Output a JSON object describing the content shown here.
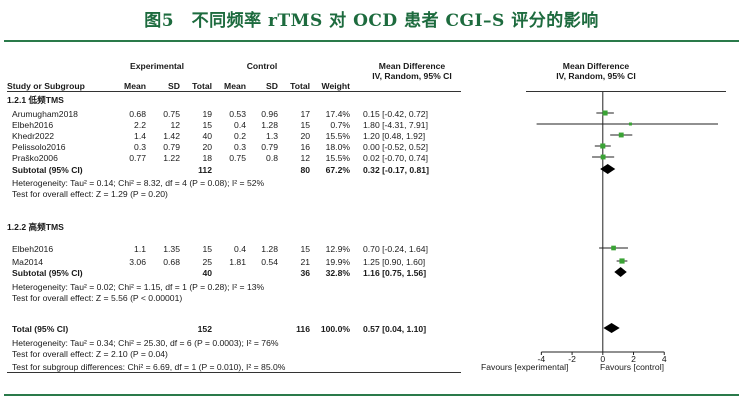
{
  "figure_title": "图5　不同频率 rTMS 对 OCD 患者 CGI–S 评分的影响",
  "headers": {
    "experimental": "Experimental",
    "control": "Control",
    "md_left": "Mean Difference",
    "md_left_sub": "IV, Random, 95% CI",
    "md_right": "Mean Difference",
    "md_right_sub": "IV, Random, 95% CI",
    "study": "Study or Subgroup",
    "mean_e": "Mean",
    "sd_e": "SD",
    "total_e": "Total",
    "mean_c": "Mean",
    "sd_c": "SD",
    "total_c": "Total",
    "weight": "Weight"
  },
  "subgroups": [
    {
      "title": "1.2.1 低频TMS",
      "studies": [
        {
          "name": "Arumugham2018",
          "mean_e": "0.68",
          "sd_e": "0.75",
          "total_e": "19",
          "mean_c": "0.53",
          "sd_c": "0.96",
          "total_c": "17",
          "weight": "17.4%",
          "ci": "0.15 [-0.42, 0.72]"
        },
        {
          "name": "Elbeh2016",
          "mean_e": "2.2",
          "sd_e": "12",
          "total_e": "15",
          "mean_c": "0.4",
          "sd_c": "1.28",
          "total_c": "15",
          "weight": "0.7%",
          "ci": "1.80 [-4.31, 7.91]"
        },
        {
          "name": "Khedr2022",
          "mean_e": "1.4",
          "sd_e": "1.42",
          "total_e": "40",
          "mean_c": "0.2",
          "sd_c": "1.3",
          "total_c": "20",
          "weight": "15.5%",
          "ci": "1.20 [0.48, 1.92]"
        },
        {
          "name": "Pelissolo2016",
          "mean_e": "0.3",
          "sd_e": "0.79",
          "total_e": "20",
          "mean_c": "0.3",
          "sd_c": "0.79",
          "total_c": "16",
          "weight": "18.0%",
          "ci": "0.00 [-0.52, 0.52]"
        },
        {
          "name": "Praško2006",
          "mean_e": "0.77",
          "sd_e": "1.22",
          "total_e": "18",
          "mean_c": "0.75",
          "sd_c": "0.8",
          "total_c": "12",
          "weight": "15.5%",
          "ci": "0.02 [-0.70, 0.74]"
        }
      ],
      "subtotal": {
        "label": "Subtotal (95% CI)",
        "total_e": "112",
        "total_c": "80",
        "weight": "67.2%",
        "ci": "0.32 [-0.17, 0.81]"
      },
      "heterogeneity": "Heterogeneity: Tau² = 0.14; Chi² = 8.32, df = 4 (P = 0.08); I² = 52%",
      "overall": "Test for overall effect: Z = 1.29 (P = 0.20)"
    },
    {
      "title": "1.2.2 高频TMS",
      "studies": [
        {
          "name": "Elbeh2016",
          "mean_e": "1.1",
          "sd_e": "1.35",
          "total_e": "15",
          "mean_c": "0.4",
          "sd_c": "1.28",
          "total_c": "15",
          "weight": "12.9%",
          "ci": "0.70 [-0.24, 1.64]"
        },
        {
          "name": "Ma2014",
          "mean_e": "3.06",
          "sd_e": "0.68",
          "total_e": "25",
          "mean_c": "1.81",
          "sd_c": "0.54",
          "total_c": "21",
          "weight": "19.9%",
          "ci": "1.25 [0.90, 1.60]"
        }
      ],
      "subtotal": {
        "label": "Subtotal (95% CI)",
        "total_e": "40",
        "total_c": "36",
        "weight": "32.8%",
        "ci": "1.16 [0.75, 1.56]"
      },
      "heterogeneity": "Heterogeneity: Tau² = 0.02; Chi² = 1.15, df = 1 (P = 0.28); I² = 13%",
      "overall": "Test for overall effect: Z = 5.56 (P < 0.00001)"
    }
  ],
  "total": {
    "label": "Total (95% CI)",
    "total_e": "152",
    "total_c": "116",
    "weight": "100.0%",
    "ci": "0.57 [0.04, 1.10]",
    "heterogeneity": "Heterogeneity: Tau² = 0.34; Chi² = 25.30, df = 6 (P = 0.0003); I² = 76%",
    "overall": "Test for overall effect: Z = 2.10 (P = 0.04)",
    "subgroup_diff": "Test for subgroup differences: Chi² = 6.69, df = 1 (P = 0.010), I² = 85.0%"
  },
  "axis": {
    "left_label": "Favours [experimental]",
    "right_label": "Favours [control]"
  },
  "colors": {
    "title": "#1d6b3e",
    "rule": "#2a7a4a",
    "marker": "#3aa335",
    "diamond": "#000000"
  },
  "chart_data": {
    "type": "forest",
    "x_range": [
      -5,
      7.5
    ],
    "ticks": [
      -4,
      -2,
      0,
      2,
      4
    ],
    "tick_labels": [
      "-4",
      "-2",
      "0",
      "2",
      "4"
    ],
    "studies": [
      {
        "name": "Arumugham2018",
        "md": 0.15,
        "lo": -0.42,
        "hi": 0.72,
        "weight": 17.4
      },
      {
        "name": "Elbeh2016",
        "md": 1.8,
        "lo": -4.31,
        "hi": 7.91,
        "weight": 0.7
      },
      {
        "name": "Khedr2022",
        "md": 1.2,
        "lo": 0.48,
        "hi": 1.92,
        "weight": 15.5
      },
      {
        "name": "Pelissolo2016",
        "md": 0.0,
        "lo": -0.52,
        "hi": 0.52,
        "weight": 18.0
      },
      {
        "name": "Praško2006",
        "md": 0.02,
        "lo": -0.7,
        "hi": 0.74,
        "weight": 15.5
      },
      {
        "name": "Elbeh2016",
        "md": 0.7,
        "lo": -0.24,
        "hi": 1.64,
        "weight": 12.9
      },
      {
        "name": "Ma2014",
        "md": 1.25,
        "lo": 0.9,
        "hi": 1.6,
        "weight": 19.9
      }
    ],
    "subtotals": [
      {
        "label": "Subtotal (95% CI)",
        "md": 0.32,
        "lo": -0.17,
        "hi": 0.81
      },
      {
        "label": "Subtotal (95% CI)",
        "md": 1.16,
        "lo": 0.75,
        "hi": 1.56
      }
    ],
    "total": {
      "label": "Total (95% CI)",
      "md": 0.57,
      "lo": 0.04,
      "hi": 1.1
    }
  }
}
